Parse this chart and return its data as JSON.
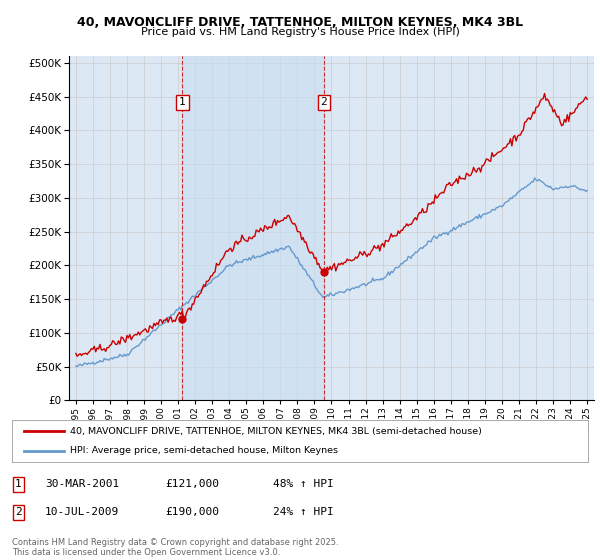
{
  "title1": "40, MAVONCLIFF DRIVE, TATTENHOE, MILTON KEYNES, MK4 3BL",
  "title2": "Price paid vs. HM Land Registry's House Price Index (HPI)",
  "plot_bg_color": "#dce9f5",
  "shade_color": "#c8dcf0",
  "sale1_year": 2001.25,
  "sale1_price": 121000,
  "sale2_year": 2009.54,
  "sale2_price": 190000,
  "legend_line1": "40, MAVONCLIFF DRIVE, TATTENHOE, MILTON KEYNES, MK4 3BL (semi-detached house)",
  "legend_line2": "HPI: Average price, semi-detached house, Milton Keynes",
  "footer": "Contains HM Land Registry data © Crown copyright and database right 2025.\nThis data is licensed under the Open Government Licence v3.0.",
  "ylim": [
    0,
    510000
  ],
  "yticks": [
    0,
    50000,
    100000,
    150000,
    200000,
    250000,
    300000,
    350000,
    400000,
    450000,
    500000
  ],
  "xlim_start": 1994.6,
  "xlim_end": 2025.4,
  "red_color": "#cc0000",
  "blue_color": "#6699cc",
  "grid_color": "#cccccc"
}
